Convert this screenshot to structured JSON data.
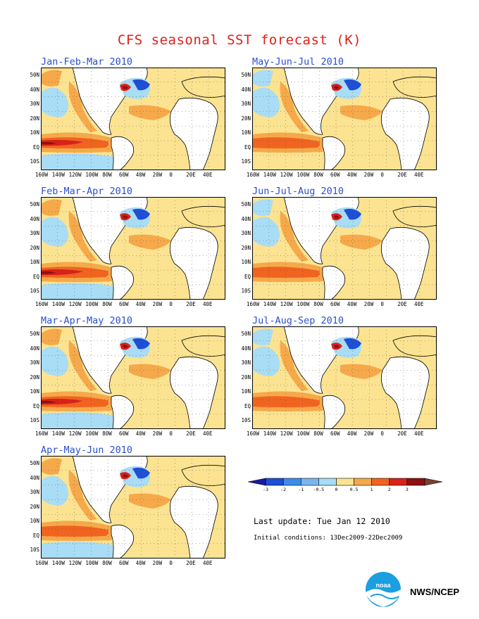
{
  "title": "CFS seasonal SST forecast (K)",
  "panels": [
    {
      "label": "Jan-Feb-Mar 2010",
      "variant": "strong"
    },
    {
      "label": "May-Jun-Jul 2010",
      "variant": "weak"
    },
    {
      "label": "Feb-Mar-Apr 2010",
      "variant": "strong"
    },
    {
      "label": "Jun-Jul-Aug 2010",
      "variant": "weak"
    },
    {
      "label": "Mar-Apr-May 2010",
      "variant": "strong"
    },
    {
      "label": "Jul-Aug-Sep 2010",
      "variant": "weak"
    },
    {
      "label": "Apr-May-Jun 2010",
      "variant": "mid"
    }
  ],
  "lat_labels": [
    "50N",
    "40N",
    "30N",
    "20N",
    "10N",
    "EQ",
    "10S"
  ],
  "lon_labels": [
    "160W",
    "140W",
    "120W",
    "100W",
    "80W",
    "60W",
    "40W",
    "20W",
    "0",
    "20E",
    "40E"
  ],
  "legend": {
    "labels": [
      "-3",
      "-2",
      "-1",
      "-0.5",
      "0",
      "0.5",
      "1",
      "2",
      "3"
    ],
    "colors": [
      "#1a1aa6",
      "#1e4fd6",
      "#3a8ee8",
      "#78b6f0",
      "#a9dcf5",
      "#fbe391",
      "#f6a94a",
      "#f06420",
      "#d8221a",
      "#8e1010",
      "#7a4030"
    ]
  },
  "last_update": "Last update: Tue Jan 12 2010",
  "initial_conditions": "Initial conditions: 13Dec2009-22Dec2009",
  "agency": "NWS/NCEP",
  "logo": {
    "icon": "noaa-logo-icon",
    "text": "noaa"
  },
  "colors": {
    "title": "#e0201c",
    "panel_title": "#2a4fd0",
    "neutral": "#ffffff",
    "pale_yellow": "#fbe391",
    "orange": "#f6a94a",
    "red_orange": "#f06420",
    "red": "#d8221a",
    "dark_red": "#8e1010",
    "light_blue": "#a9dcf5",
    "mid_blue": "#5e9fe6",
    "dark_blue": "#1e4fd6"
  }
}
